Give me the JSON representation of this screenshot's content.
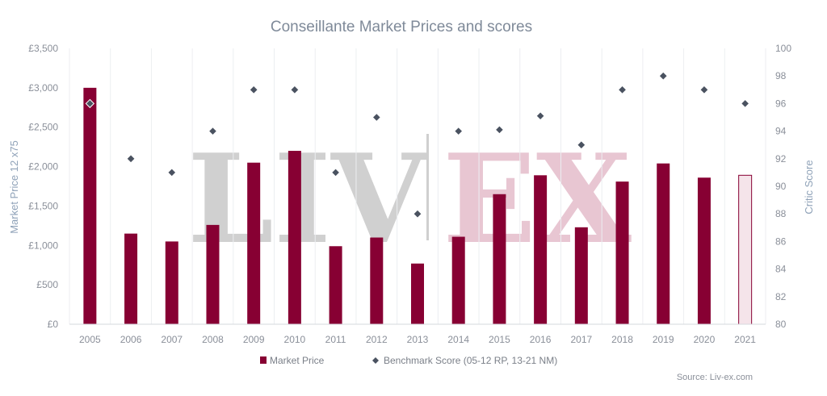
{
  "chart_data": {
    "type": "bar",
    "title": "Conseillante Market Prices and scores",
    "ylabel": "Market Price 12 x75",
    "y2label": "Critic Score",
    "ylim": [
      0,
      3500
    ],
    "y2lim": [
      80,
      100
    ],
    "yticks": [
      "£0",
      "£500",
      "£1,000",
      "£1,500",
      "£2,000",
      "£2,500",
      "£3,000",
      "£3,500"
    ],
    "y2ticks": [
      "80",
      "82",
      "84",
      "86",
      "88",
      "90",
      "92",
      "94",
      "96",
      "98",
      "100"
    ],
    "categories": [
      "2005",
      "2006",
      "2007",
      "2008",
      "2009",
      "2010",
      "2011",
      "2012",
      "2013",
      "2014",
      "2015",
      "2016",
      "2017",
      "2018",
      "2019",
      "2020",
      "2021"
    ],
    "series": [
      {
        "name": "Market Price",
        "type": "bar",
        "axis": "left",
        "color": "#870033",
        "values": [
          3000,
          1150,
          1050,
          1260,
          2050,
          2200,
          990,
          1100,
          770,
          1110,
          1650,
          1890,
          1230,
          1810,
          2040,
          1860,
          1890
        ]
      },
      {
        "name": "Benchmark Score (05-12 RP, 13-21 NM)",
        "type": "scatter",
        "axis": "right",
        "color": "#4a5260",
        "values": [
          96,
          92,
          91,
          94,
          97,
          97,
          91,
          95,
          88,
          94,
          94.1,
          95.1,
          93,
          97,
          98,
          97,
          96
        ]
      }
    ],
    "last_bar_style": "outlined-light-pink",
    "legend_position": "bottom-center",
    "grid": "vertical"
  },
  "source_note": "Source: Liv-ex.com",
  "watermark": {
    "left": "LIV",
    "right": "EX",
    "left_color": "#d0d0d0",
    "right_color": "#e8c6d2"
  }
}
